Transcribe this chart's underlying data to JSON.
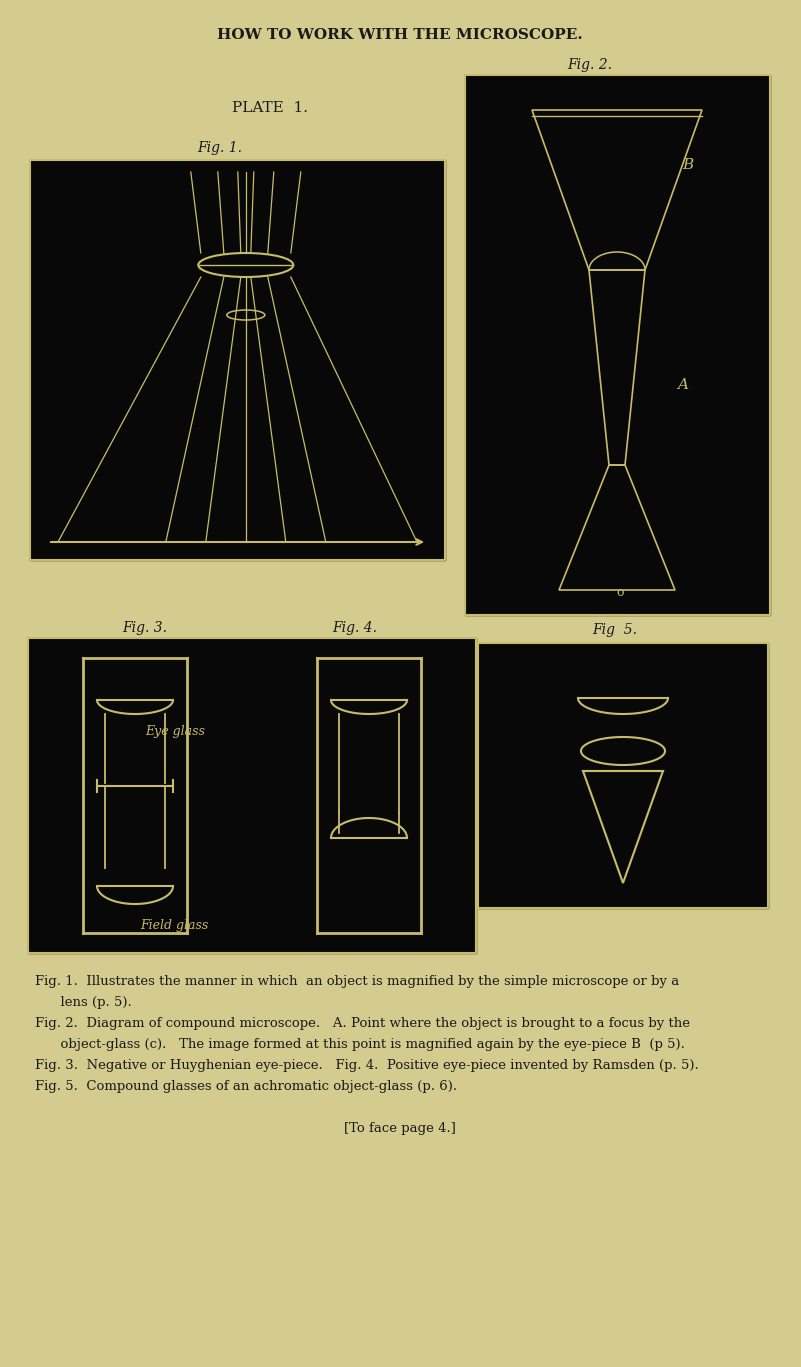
{
  "bg_color": "#d4cc8f",
  "page_title": "HOW TO WORK WITH THE MICROSCOPE.",
  "plate_label": "PLATE  1.",
  "fig1_label": "Fig. 1.",
  "fig2_label": "Fig. 2.",
  "fig3_label": "Fig. 3.",
  "fig4_label": "Fig. 4.",
  "fig5_label": "Fig  5.",
  "panel_bg": "#080808",
  "panel_line": "#c8bc6a",
  "caption_lines": [
    "Fig. 1.  Illustrates the manner in which  an object is magnified by the simple microscope or by a",
    "      lens (p. 5).",
    "Fig. 2.  Diagram of compound microscope.   A. Point where the object is brought to a focus by the",
    "      object-glass (c).   The image formed at this point is magnified again by the eye-piece B  (p 5).",
    "Fig. 3.  Negative or Huyghenian eye-piece.   Fig. 4.  Positive eye-piece invented by Ramsden (p. 5).",
    "Fig. 5.  Compound glasses of an achromatic object-glass (p. 6).",
    "",
    "[To face page 4.]"
  ]
}
